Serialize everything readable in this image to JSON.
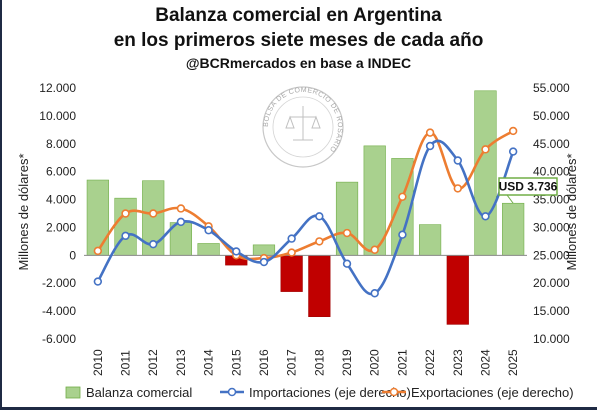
{
  "header": {
    "title_line1": "Balanza comercial en Argentina",
    "title_line2": "en los primeros siete meses de cada año",
    "subtitle": "@BCRmercados en base a INDEC"
  },
  "watermark": {
    "text": "BOLSA DE COMERCIO DE ROSARIO"
  },
  "chart_data": {
    "type": "bar",
    "categories": [
      "2010",
      "2011",
      "2012",
      "2013",
      "2014",
      "2015",
      "2016",
      "2017",
      "2018",
      "2019",
      "2020",
      "2021",
      "2022",
      "2023",
      "2024",
      "2025"
    ],
    "ylabel_left": "Millones de dólares*",
    "ylabel_right": "Millones de dólares*",
    "ylim_left": [
      -6000,
      12000
    ],
    "ylim_right": [
      10000,
      55000
    ],
    "yticks_left": [
      "-6.000",
      "-4.000",
      "-2.000",
      "0",
      "2.000",
      "4.000",
      "6.000",
      "8.000",
      "10.000",
      "12.000"
    ],
    "yticks_right": [
      "10.000",
      "15.000",
      "20.000",
      "25.000",
      "30.000",
      "35.000",
      "40.000",
      "45.000",
      "50.000",
      "55.000"
    ],
    "grid": false,
    "legend_position": "bottom",
    "series": [
      {
        "name": "Balanza comercial",
        "kind": "bar",
        "axis": "left",
        "color": "#a9d18e",
        "negative_color": "#c00000",
        "values": [
          5400,
          4100,
          5350,
          2350,
          850,
          -700,
          750,
          -2600,
          -4400,
          5250,
          7850,
          6950,
          2200,
          -4950,
          11800,
          3736
        ]
      },
      {
        "name": "Importaciones (eje derecho)",
        "kind": "line",
        "axis": "right",
        "color": "#4472c4",
        "values": [
          20300,
          28500,
          27000,
          31000,
          29500,
          25700,
          23800,
          28000,
          32000,
          23500,
          18200,
          28700,
          44600,
          42000,
          32000,
          43600
        ]
      },
      {
        "name": "Exportaciones (eje derecho)",
        "kind": "line",
        "axis": "right",
        "color": "#ed7d31",
        "values": [
          25800,
          32500,
          32500,
          33400,
          30200,
          25000,
          24500,
          25500,
          27500,
          29000,
          26000,
          35500,
          47000,
          37000,
          44000,
          47300
        ]
      }
    ],
    "annotation": {
      "text": "USD 3.736",
      "category": "2025"
    }
  }
}
